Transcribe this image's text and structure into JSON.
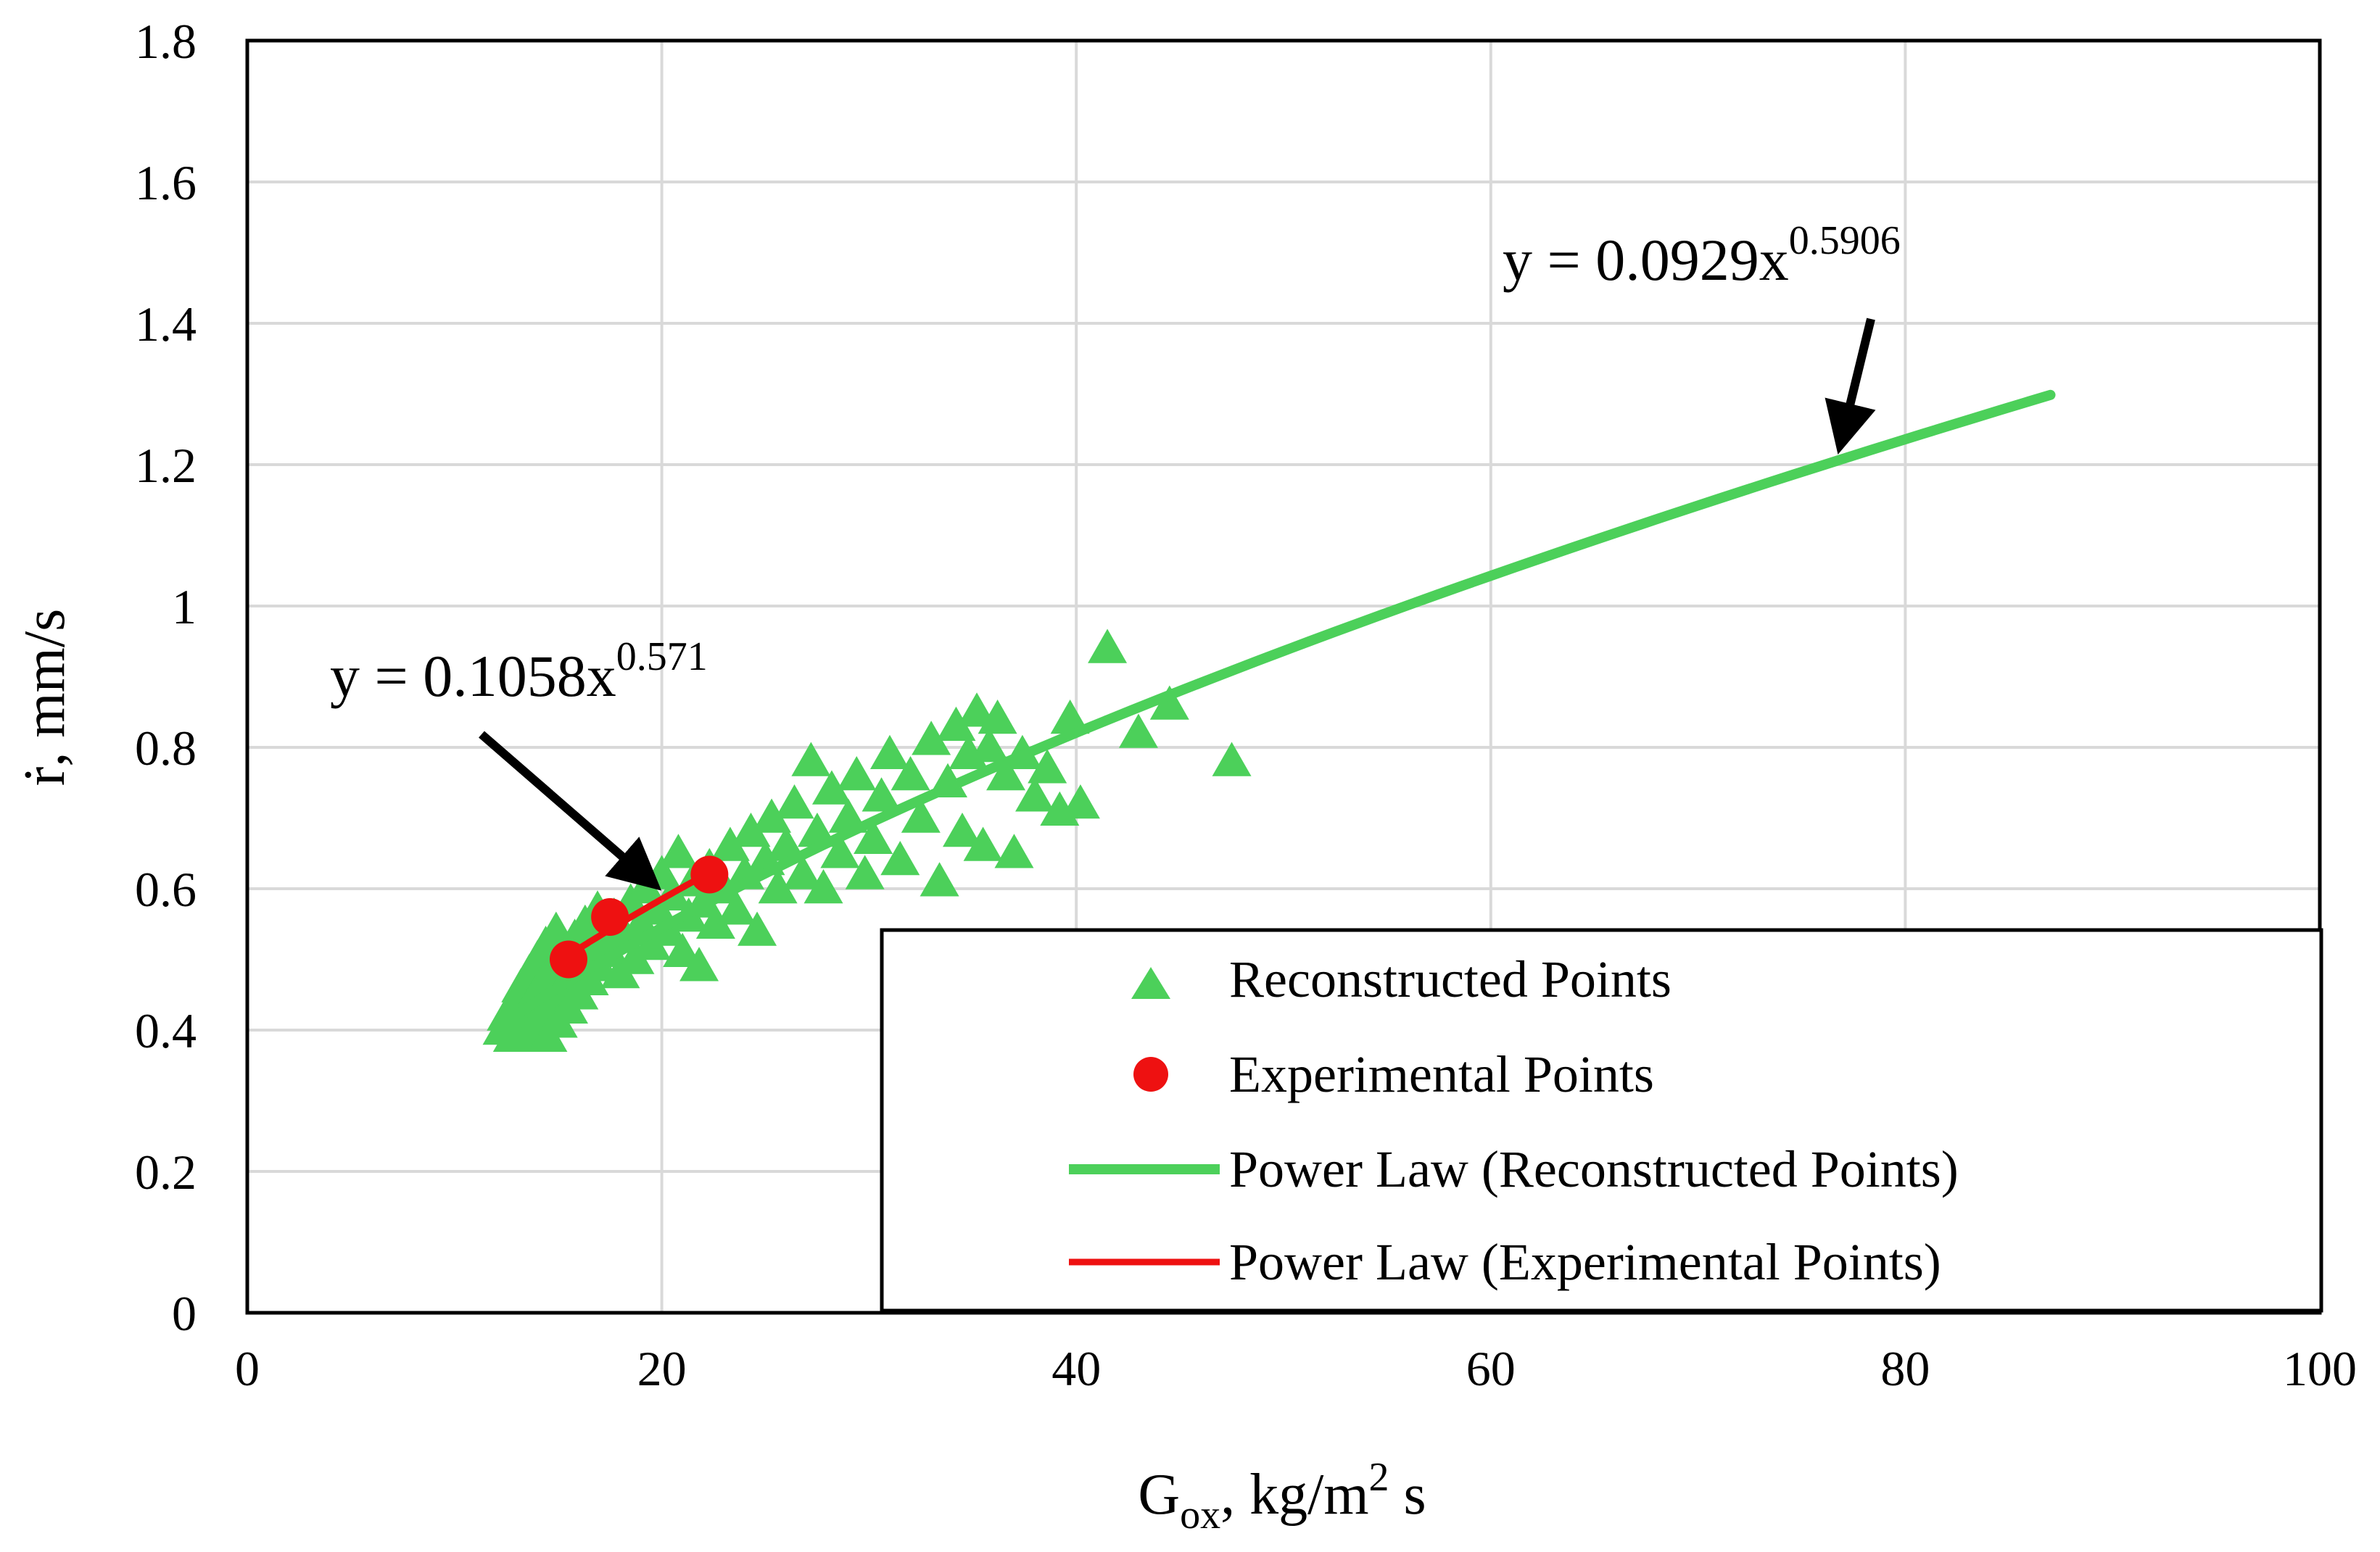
{
  "chart_data": {
    "type": "scatter",
    "xlabel": {
      "main": "G",
      "sub": "ox",
      "rest": ", kg/m",
      "sup": "2",
      "tail": " s"
    },
    "ylabel": "ṙ, mm/s",
    "xlim": [
      0,
      100
    ],
    "ylim": [
      0,
      1.8
    ],
    "x_ticks": [
      0,
      20,
      40,
      60,
      80,
      100
    ],
    "y_ticks": [
      0,
      0.2,
      0.4,
      0.6,
      0.8,
      1,
      1.2,
      1.4,
      1.6,
      1.8
    ],
    "x_tick_labels": [
      "0",
      "20",
      "40",
      "60",
      "80",
      "100"
    ],
    "y_tick_labels": [
      "0",
      "0.2",
      "0.4",
      "0.6",
      "0.8",
      "1",
      "1.2",
      "1.4",
      "1.6",
      "1.8"
    ],
    "grid": true,
    "colors": {
      "reconstructed": "#4cd05a",
      "experimental": "#ee1111",
      "arrow": "#000000"
    },
    "series": [
      {
        "name": "Reconstructed Points",
        "marker": "triangle",
        "points": [
          [
            12.3,
            0.4
          ],
          [
            12.5,
            0.42
          ],
          [
            12.8,
            0.39
          ],
          [
            12.9,
            0.44
          ],
          [
            13.0,
            0.41
          ],
          [
            13.2,
            0.46
          ],
          [
            13.3,
            0.39
          ],
          [
            13.5,
            0.43
          ],
          [
            13.6,
            0.48
          ],
          [
            13.8,
            0.4
          ],
          [
            13.9,
            0.45
          ],
          [
            14.0,
            0.5
          ],
          [
            14.1,
            0.42
          ],
          [
            14.3,
            0.47
          ],
          [
            14.4,
            0.52
          ],
          [
            14.5,
            0.39
          ],
          [
            14.6,
            0.44
          ],
          [
            14.8,
            0.49
          ],
          [
            14.9,
            0.54
          ],
          [
            15.0,
            0.41
          ],
          [
            15.2,
            0.46
          ],
          [
            15.3,
            0.51
          ],
          [
            15.5,
            0.43
          ],
          [
            15.6,
            0.48
          ],
          [
            15.8,
            0.53
          ],
          [
            16.0,
            0.45
          ],
          [
            16.1,
            0.5
          ],
          [
            16.3,
            0.55
          ],
          [
            16.5,
            0.47
          ],
          [
            16.7,
            0.52
          ],
          [
            16.9,
            0.57
          ],
          [
            17.0,
            0.49
          ],
          [
            17.2,
            0.54
          ],
          [
            17.5,
            0.51
          ],
          [
            17.7,
            0.56
          ],
          [
            18.0,
            0.48
          ],
          [
            18.2,
            0.53
          ],
          [
            18.5,
            0.58
          ],
          [
            18.7,
            0.5
          ],
          [
            19.0,
            0.55
          ],
          [
            19.2,
            0.6
          ],
          [
            19.5,
            0.52
          ],
          [
            19.8,
            0.57
          ],
          [
            20.0,
            0.62
          ],
          [
            20.3,
            0.54
          ],
          [
            20.5,
            0.59
          ],
          [
            20.8,
            0.65
          ],
          [
            21.0,
            0.51
          ],
          [
            21.3,
            0.56
          ],
          [
            21.5,
            0.61
          ],
          [
            21.8,
            0.49
          ],
          [
            22.0,
            0.58
          ],
          [
            22.3,
            0.63
          ],
          [
            22.6,
            0.55
          ],
          [
            23.0,
            0.6
          ],
          [
            23.3,
            0.66
          ],
          [
            23.6,
            0.57
          ],
          [
            24.0,
            0.62
          ],
          [
            24.3,
            0.68
          ],
          [
            24.6,
            0.54
          ],
          [
            25.0,
            0.64
          ],
          [
            25.3,
            0.7
          ],
          [
            25.6,
            0.6
          ],
          [
            26.0,
            0.66
          ],
          [
            26.4,
            0.72
          ],
          [
            26.8,
            0.62
          ],
          [
            27.2,
            0.78
          ],
          [
            27.5,
            0.68
          ],
          [
            27.8,
            0.6
          ],
          [
            28.2,
            0.74
          ],
          [
            28.6,
            0.65
          ],
          [
            29.0,
            0.7
          ],
          [
            29.4,
            0.76
          ],
          [
            29.8,
            0.62
          ],
          [
            30.2,
            0.67
          ],
          [
            30.6,
            0.73
          ],
          [
            31.0,
            0.79
          ],
          [
            31.5,
            0.64
          ],
          [
            32.0,
            0.76
          ],
          [
            32.5,
            0.7
          ],
          [
            33.0,
            0.81
          ],
          [
            33.4,
            0.61
          ],
          [
            33.8,
            0.75
          ],
          [
            34.2,
            0.83
          ],
          [
            34.5,
            0.68
          ],
          [
            34.8,
            0.79
          ],
          [
            35.2,
            0.85
          ],
          [
            35.5,
            0.66
          ],
          [
            35.8,
            0.8
          ],
          [
            36.2,
            0.84
          ],
          [
            36.6,
            0.76
          ],
          [
            37.0,
            0.65
          ],
          [
            37.4,
            0.79
          ],
          [
            38.0,
            0.73
          ],
          [
            38.6,
            0.77
          ],
          [
            39.2,
            0.71
          ],
          [
            39.7,
            0.84
          ],
          [
            40.2,
            0.72
          ],
          [
            41.5,
            0.94
          ],
          [
            43.0,
            0.82
          ],
          [
            44.5,
            0.86
          ],
          [
            47.5,
            0.78
          ]
        ]
      },
      {
        "name": "Experimental Points",
        "marker": "circle",
        "points": [
          [
            15.5,
            0.5
          ],
          [
            17.5,
            0.56
          ],
          [
            22.3,
            0.62
          ]
        ]
      },
      {
        "name": "Power Law (Reconstructed Points)",
        "marker": "line",
        "equation": {
          "base": "y = 0.0929x",
          "exponent": "0.5906"
        },
        "coef": 0.0929,
        "exp": 0.5906,
        "x_range": [
          13,
          87
        ]
      },
      {
        "name": "Power Law (Experimental Points)",
        "marker": "line",
        "equation": {
          "base": "y = 0.1058x",
          "exponent": "0.571"
        },
        "coef": 0.1058,
        "exp": 0.571,
        "x_range": [
          15.5,
          22.3
        ]
      }
    ],
    "legend": {
      "placement": "bottom-right",
      "entries": [
        "Reconstructed Points",
        "Experimental Points",
        "Power Law (Reconstructed Points)",
        "Power Law (Experimental Points)"
      ]
    }
  }
}
